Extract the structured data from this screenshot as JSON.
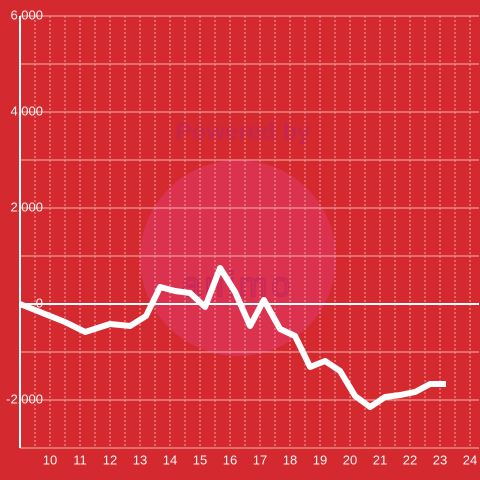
{
  "chart_data": {
    "type": "line",
    "watermark": {
      "top": "Powered by",
      "bottom": "animo"
    },
    "x": [
      9,
      10.5,
      11.17,
      12,
      12.67,
      13.2,
      13.67,
      14.17,
      14.67,
      15.17,
      15.67,
      16.17,
      16.67,
      17.13,
      17.67,
      18.17,
      18.67,
      19.17,
      19.67,
      20.17,
      20.67,
      21.17,
      21.67,
      22.17,
      22.67,
      23.2
    ],
    "series": [
      {
        "color": "#ffffff",
        "values": [
          0,
          -375,
          -583,
          -417,
          -458,
          -250,
          354,
          271,
          229,
          -62,
          750,
          250,
          -458,
          83,
          -521,
          -667,
          -1312,
          -1187,
          -1396,
          -1917,
          -2146,
          -1937,
          -1896,
          -1833,
          -1667,
          -1667
        ]
      }
    ],
    "xlim": [
      9,
      24.3
    ],
    "xticks": [
      10,
      11,
      12,
      13,
      14,
      15,
      16,
      17,
      18,
      19,
      20,
      21,
      22,
      23,
      24
    ],
    "xminor": [
      9.5,
      10.5,
      11.5,
      12.5,
      13.5,
      14.5,
      15.5,
      16.5,
      17.5,
      18.5,
      19.5,
      20.5,
      21.5,
      22.5,
      23.5
    ],
    "ylim": [
      -3000,
      6000
    ],
    "yticks": [
      {
        "value": -2000,
        "label": "-2,000"
      },
      0,
      {
        "value": 2000,
        "label": "2,000"
      },
      {
        "value": 4000,
        "label": "4,000"
      },
      {
        "value": 6000,
        "label": "6,000"
      }
    ],
    "yminor": [
      -3000,
      -1000,
      1000,
      3000,
      5000
    ],
    "grid": true
  }
}
